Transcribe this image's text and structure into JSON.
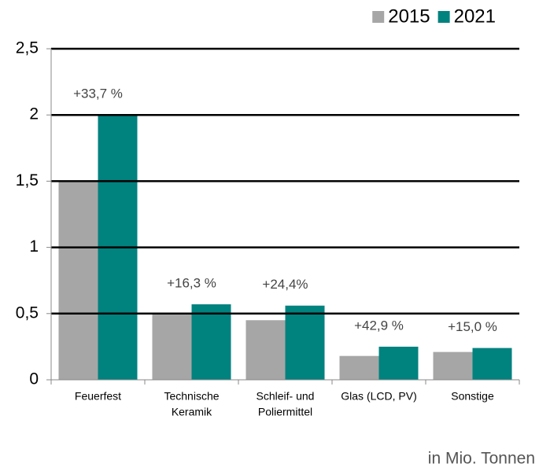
{
  "chart_data": {
    "type": "bar",
    "categories": [
      [
        "Feuerfest"
      ],
      [
        "Technische",
        "Keramik"
      ],
      [
        "Schleif- und",
        "Poliermittel"
      ],
      [
        "Glas (LCD, PV)"
      ],
      [
        "Sonstige"
      ]
    ],
    "series": [
      {
        "name": "2015",
        "color": "#a6a6a6",
        "values": [
          1.5,
          0.5,
          0.45,
          0.18,
          0.21
        ]
      },
      {
        "name": "2021",
        "color": "#00827f",
        "values": [
          2.0,
          0.57,
          0.56,
          0.25,
          0.24
        ]
      }
    ],
    "annotations": [
      "+33,7 %",
      "+16,3 %",
      "+24,4%",
      "+42,9 %",
      "+15,0 %"
    ],
    "ylim": [
      0,
      2.5
    ],
    "yticks": [
      0,
      {
        "value": 0.5,
        "label": "0,5"
      },
      1,
      {
        "value": 1.5,
        "label": "1,5"
      },
      2,
      {
        "value": 2.5,
        "label": "2,5"
      }
    ],
    "grid": true,
    "legend": "top-right",
    "footnote": "in Mio. Tonnen"
  }
}
